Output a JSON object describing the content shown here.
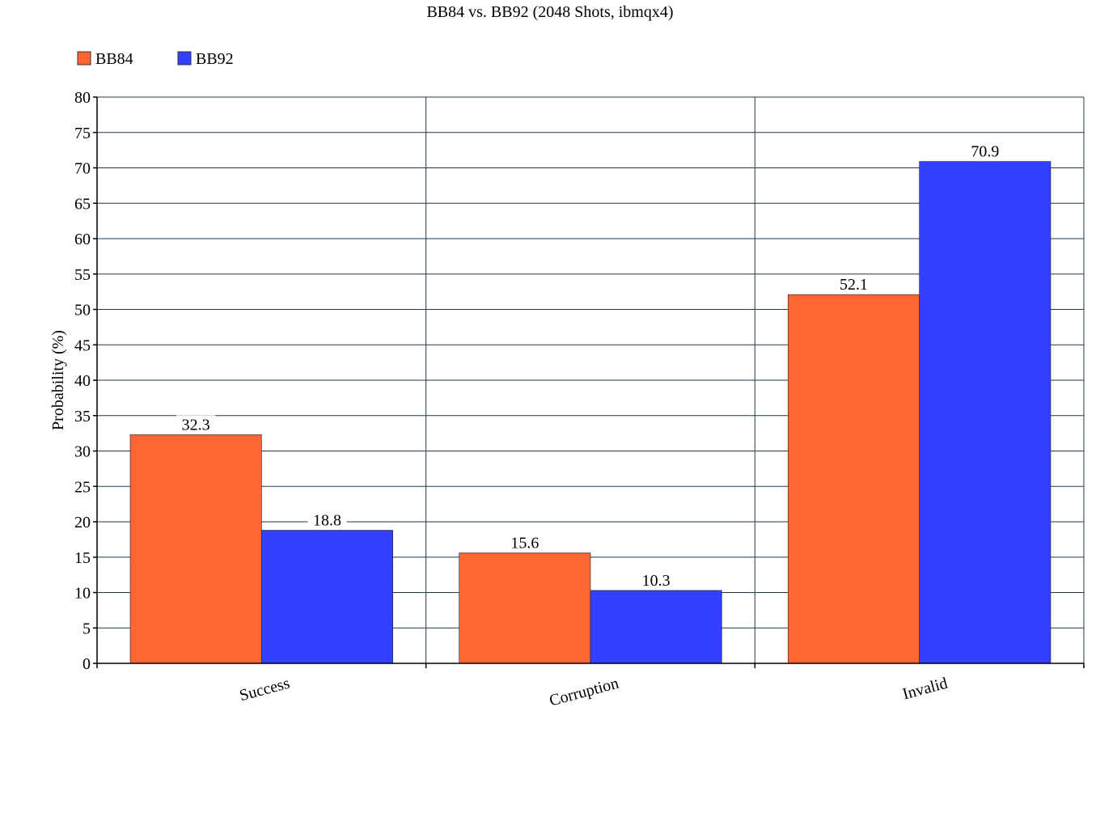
{
  "chart_data": {
    "type": "bar",
    "title": "BB84 vs. BB92 (2048 Shots, ibmqx4)",
    "xlabel": "",
    "ylabel": "Probability (%)",
    "ylim": [
      0,
      80
    ],
    "ytick_step": 5,
    "grid": true,
    "legend_position": "top-left",
    "categories": [
      "Success",
      "Corruption",
      "Invalid"
    ],
    "series": [
      {
        "name": "BB84",
        "color": "#ff6633",
        "values": [
          32.3,
          15.6,
          52.1
        ]
      },
      {
        "name": "BB92",
        "color": "#3340ff",
        "values": [
          18.8,
          10.3,
          70.9
        ]
      }
    ],
    "grid_color": "#1f3a4d"
  }
}
